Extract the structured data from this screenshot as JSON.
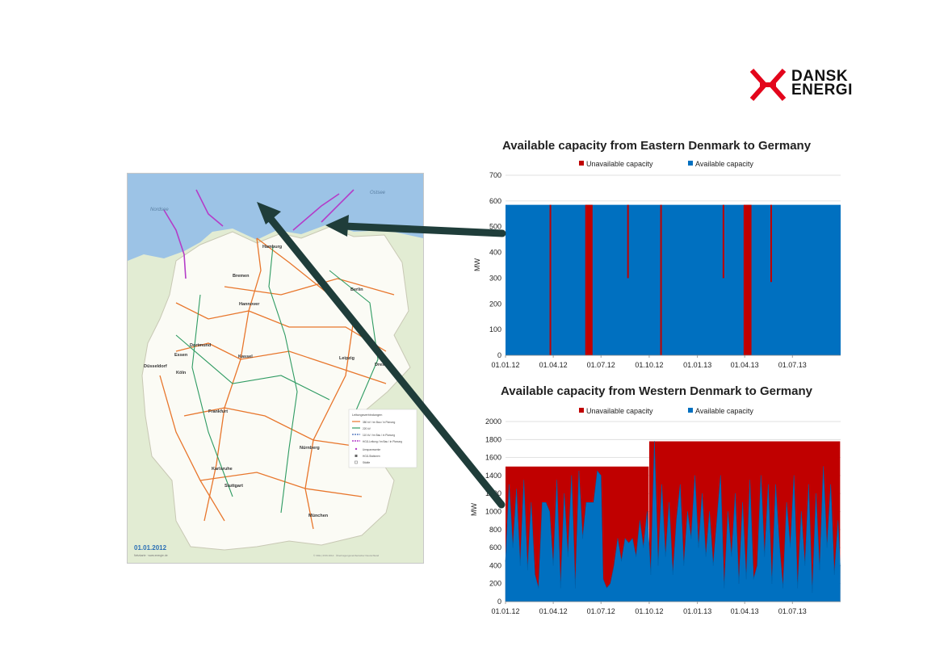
{
  "logo": {
    "line1": "DANSK",
    "line2": "ENERGI",
    "brand_color": "#e3051b"
  },
  "map": {
    "date_label": "01.01.2012",
    "credit": "Netzkarte · www.energie.de",
    "copyright": "© VDE | FNN 2012 · Übertragungsnetzbetreiber Deutschland",
    "sea_north": "Nordsee",
    "sea_east": "Ostsee",
    "cities": [
      "Hamburg",
      "Bremen",
      "Berlin",
      "Hannover",
      "Kassel",
      "Leipzig",
      "Dortmund",
      "Essen",
      "Düsseldorf",
      "Köln",
      "Dresden",
      "Frankfurt",
      "Nürnberg",
      "Karlsruhe",
      "Stuttgart",
      "München"
    ],
    "legend_title": "Leitungsverbindungen",
    "legend_items": [
      "380 kV / im Bau / in Planung",
      "220 kV",
      "110 kV / im Bau / in Planung",
      "HGÜ-Leitung / im Bau / in Planung",
      "Umspannwerke",
      "HGÜ-Stationen",
      "Städte"
    ],
    "colors": {
      "sea": "#9cc3e6",
      "land": "#fbfbf5",
      "neighbor": "#e2ecd3",
      "line_380": "#e8762c",
      "line_220": "#2e9b62",
      "line_hvdc": "#b43cc8"
    }
  },
  "chart_data": [
    {
      "type": "area",
      "stacked": true,
      "title": "Available capacity from Eastern Denmark to Germany",
      "ylabel": "MW",
      "ylim": [
        0,
        700
      ],
      "yticks": [
        0,
        100,
        200,
        300,
        400,
        500,
        600,
        700
      ],
      "x_range": [
        "01.01.12",
        "01.10.13"
      ],
      "xticks": [
        "01.01.12",
        "01.04.12",
        "01.07.12",
        "01.10.12",
        "01.01.13",
        "01.04.13",
        "01.07.13"
      ],
      "legend_position": "top",
      "grid": true,
      "colors": {
        "Unavailable capacity": "#c00000",
        "Available capacity": "#0070c0"
      },
      "total_capacity": 585,
      "series": [
        {
          "name": "Unavailable capacity",
          "outages": [
            {
              "start": "2012-03-25",
              "end": "2012-03-27",
              "available": 0
            },
            {
              "start": "2012-06-01",
              "end": "2012-06-15",
              "available": 0
            },
            {
              "start": "2012-08-20",
              "end": "2012-08-23",
              "available": 300
            },
            {
              "start": "2012-10-22",
              "end": "2012-10-24",
              "available": 0
            },
            {
              "start": "2013-02-18",
              "end": "2013-02-20",
              "available": 300
            },
            {
              "start": "2013-03-30",
              "end": "2013-04-14",
              "available": 0
            },
            {
              "start": "2013-05-20",
              "end": "2013-05-23",
              "available": 285
            }
          ]
        },
        {
          "name": "Available capacity",
          "base_value": 585
        }
      ]
    },
    {
      "type": "area",
      "stacked": true,
      "title": "Available capacity from Western Denmark to Germany",
      "ylabel": "MW",
      "ylim": [
        0,
        2000
      ],
      "yticks": [
        0,
        200,
        400,
        600,
        800,
        1000,
        1200,
        1400,
        1600,
        1800,
        2000
      ],
      "x_range": [
        "01.01.12",
        "01.10.13"
      ],
      "xticks": [
        "01.01.12",
        "01.04.12",
        "01.07.12",
        "01.10.12",
        "01.01.13",
        "01.04.13",
        "01.07.13"
      ],
      "legend_position": "top",
      "grid": true,
      "colors": {
        "Unavailable capacity": "#c00000",
        "Available capacity": "#0070c0"
      },
      "series": [
        {
          "name": "Unavailable capacity",
          "total_capacity": [
            {
              "start": "2012-01-01",
              "end": "2012-09-30",
              "value": 1500
            },
            {
              "start": "2012-10-01",
              "end": "2013-09-30",
              "value": 1780
            }
          ]
        },
        {
          "name": "Available capacity",
          "values": [
            {
              "x": "2012-01-01",
              "y": 450
            },
            {
              "x": "2012-01-08",
              "y": 1300
            },
            {
              "x": "2012-01-15",
              "y": 600
            },
            {
              "x": "2012-01-22",
              "y": 1250
            },
            {
              "x": "2012-01-29",
              "y": 400
            },
            {
              "x": "2012-02-05",
              "y": 1350
            },
            {
              "x": "2012-02-12",
              "y": 350
            },
            {
              "x": "2012-02-19",
              "y": 1100
            },
            {
              "x": "2012-02-26",
              "y": 300
            },
            {
              "x": "2012-03-04",
              "y": 150
            },
            {
              "x": "2012-03-11",
              "y": 1100
            },
            {
              "x": "2012-03-18",
              "y": 1100
            },
            {
              "x": "2012-03-25",
              "y": 1000
            },
            {
              "x": "2012-04-01",
              "y": 400
            },
            {
              "x": "2012-04-08",
              "y": 1350
            },
            {
              "x": "2012-04-15",
              "y": 150
            },
            {
              "x": "2012-04-22",
              "y": 1200
            },
            {
              "x": "2012-04-29",
              "y": 500
            },
            {
              "x": "2012-05-06",
              "y": 1400
            },
            {
              "x": "2012-05-13",
              "y": 150
            },
            {
              "x": "2012-05-20",
              "y": 1450
            },
            {
              "x": "2012-05-27",
              "y": 700
            },
            {
              "x": "2012-06-03",
              "y": 1100
            },
            {
              "x": "2012-06-10",
              "y": 1100
            },
            {
              "x": "2012-06-17",
              "y": 1100
            },
            {
              "x": "2012-06-24",
              "y": 1450
            },
            {
              "x": "2012-07-01",
              "y": 1400
            },
            {
              "x": "2012-07-05",
              "y": 250
            },
            {
              "x": "2012-07-12",
              "y": 150
            },
            {
              "x": "2012-07-19",
              "y": 200
            },
            {
              "x": "2012-07-26",
              "y": 400
            },
            {
              "x": "2012-08-02",
              "y": 700
            },
            {
              "x": "2012-08-09",
              "y": 450
            },
            {
              "x": "2012-08-16",
              "y": 700
            },
            {
              "x": "2012-08-23",
              "y": 650
            },
            {
              "x": "2012-08-30",
              "y": 700
            },
            {
              "x": "2012-09-06",
              "y": 500
            },
            {
              "x": "2012-09-13",
              "y": 900
            },
            {
              "x": "2012-09-20",
              "y": 600
            },
            {
              "x": "2012-09-27",
              "y": 1000
            },
            {
              "x": "2012-10-04",
              "y": 300
            },
            {
              "x": "2012-10-11",
              "y": 1780
            },
            {
              "x": "2012-10-18",
              "y": 400
            },
            {
              "x": "2012-10-25",
              "y": 1300
            },
            {
              "x": "2012-11-01",
              "y": 500
            },
            {
              "x": "2012-11-08",
              "y": 1100
            },
            {
              "x": "2012-11-15",
              "y": 300
            },
            {
              "x": "2012-11-22",
              "y": 900
            },
            {
              "x": "2012-11-29",
              "y": 1300
            },
            {
              "x": "2012-12-06",
              "y": 400
            },
            {
              "x": "2012-12-13",
              "y": 1000
            },
            {
              "x": "2012-12-20",
              "y": 700
            },
            {
              "x": "2012-12-27",
              "y": 1400
            },
            {
              "x": "2013-01-03",
              "y": 600
            },
            {
              "x": "2013-01-10",
              "y": 1200
            },
            {
              "x": "2013-01-17",
              "y": 500
            },
            {
              "x": "2013-01-24",
              "y": 1000
            },
            {
              "x": "2013-01-31",
              "y": 400
            },
            {
              "x": "2013-02-07",
              "y": 900
            },
            {
              "x": "2013-02-14",
              "y": 1400
            },
            {
              "x": "2013-02-21",
              "y": 150
            },
            {
              "x": "2013-02-28",
              "y": 1000
            },
            {
              "x": "2013-03-07",
              "y": 500
            },
            {
              "x": "2013-03-14",
              "y": 1200
            },
            {
              "x": "2013-03-21",
              "y": 200
            },
            {
              "x": "2013-03-28",
              "y": 1100
            },
            {
              "x": "2013-04-04",
              "y": 250
            },
            {
              "x": "2013-04-11",
              "y": 1350
            },
            {
              "x": "2013-04-18",
              "y": 250
            },
            {
              "x": "2013-04-25",
              "y": 400
            },
            {
              "x": "2013-05-02",
              "y": 1400
            },
            {
              "x": "2013-05-09",
              "y": 500
            },
            {
              "x": "2013-05-16",
              "y": 1300
            },
            {
              "x": "2013-05-23",
              "y": 200
            },
            {
              "x": "2013-05-30",
              "y": 1300
            },
            {
              "x": "2013-06-06",
              "y": 650
            },
            {
              "x": "2013-06-13",
              "y": 150
            },
            {
              "x": "2013-06-20",
              "y": 1100
            },
            {
              "x": "2013-06-27",
              "y": 600
            },
            {
              "x": "2013-07-04",
              "y": 1400
            },
            {
              "x": "2013-07-11",
              "y": 150
            },
            {
              "x": "2013-07-18",
              "y": 1000
            },
            {
              "x": "2013-07-25",
              "y": 400
            },
            {
              "x": "2013-08-01",
              "y": 1300
            },
            {
              "x": "2013-08-08",
              "y": 100
            },
            {
              "x": "2013-08-15",
              "y": 1200
            },
            {
              "x": "2013-08-22",
              "y": 350
            },
            {
              "x": "2013-08-29",
              "y": 1500
            },
            {
              "x": "2013-09-05",
              "y": 600
            },
            {
              "x": "2013-09-12",
              "y": 1300
            },
            {
              "x": "2013-09-19",
              "y": 300
            },
            {
              "x": "2013-09-26",
              "y": 900
            },
            {
              "x": "2013-09-30",
              "y": 400
            }
          ]
        }
      ]
    }
  ]
}
